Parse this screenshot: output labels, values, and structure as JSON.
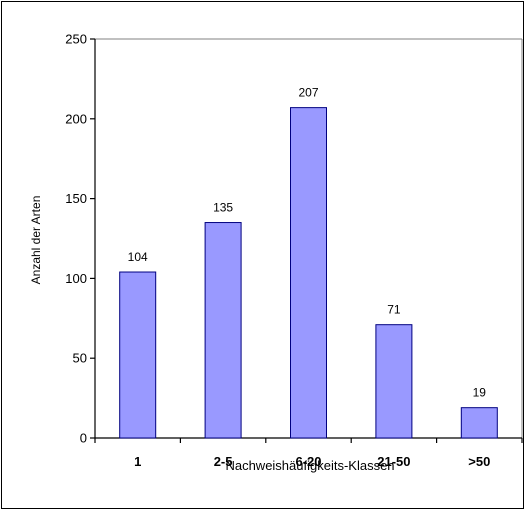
{
  "chart_data": {
    "type": "bar",
    "categories": [
      "1",
      "2-5",
      "6-20",
      "21-50",
      ">50"
    ],
    "values": [
      104,
      135,
      207,
      71,
      19
    ],
    "data_labels": [
      "104",
      "135",
      "207",
      "71",
      "19"
    ],
    "xlabel": "Nachweishäufigkeits-Klassen",
    "ylabel": "Anzahl der Arten",
    "ylim": [
      0,
      250
    ],
    "yticks": [
      0,
      50,
      100,
      150,
      200,
      250
    ],
    "ytick_labels": [
      "0",
      "50",
      "100",
      "150",
      "200",
      "250"
    ],
    "grid": false,
    "bar_color": "#9999ff",
    "bar_edge_color": "#000080"
  }
}
